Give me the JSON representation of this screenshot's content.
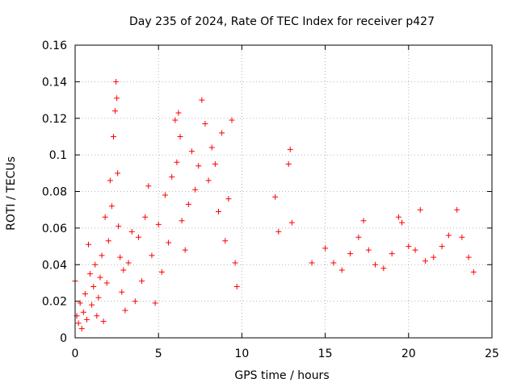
{
  "chart_data": {
    "type": "scatter",
    "title": "Day 235 of 2024, Rate Of TEC Index for receiver p427",
    "xlabel": "GPS time / hours",
    "ylabel": "ROTI / TECUs",
    "xlim": [
      0,
      25
    ],
    "ylim": [
      0,
      0.16
    ],
    "x_ticks": [
      0,
      5,
      10,
      15,
      20,
      25
    ],
    "y_ticks": [
      0,
      0.02,
      0.04,
      0.06,
      0.08,
      0.1,
      0.12,
      0.14,
      0.16
    ],
    "x_tick_labels": [
      "0",
      "5",
      "10",
      "15",
      "20",
      "25"
    ],
    "y_tick_labels": [
      "0",
      "0.02",
      "0.04",
      "0.06",
      "0.08",
      "0.1",
      "0.12",
      "0.14",
      "0.16"
    ],
    "grid": true,
    "marker": "plus",
    "color": "#ff0000",
    "series": [
      {
        "points": [
          [
            0.0,
            0.031
          ],
          [
            0.1,
            0.012
          ],
          [
            0.2,
            0.008
          ],
          [
            0.3,
            0.019
          ],
          [
            0.4,
            0.005
          ],
          [
            0.5,
            0.014
          ],
          [
            0.6,
            0.024
          ],
          [
            0.7,
            0.01
          ],
          [
            0.8,
            0.051
          ],
          [
            0.9,
            0.035
          ],
          [
            1.0,
            0.018
          ],
          [
            1.1,
            0.028
          ],
          [
            1.2,
            0.04
          ],
          [
            1.3,
            0.012
          ],
          [
            1.4,
            0.022
          ],
          [
            1.5,
            0.033
          ],
          [
            1.6,
            0.045
          ],
          [
            1.7,
            0.009
          ],
          [
            1.8,
            0.066
          ],
          [
            1.9,
            0.03
          ],
          [
            2.0,
            0.053
          ],
          [
            2.1,
            0.086
          ],
          [
            2.2,
            0.072
          ],
          [
            2.3,
            0.11
          ],
          [
            2.4,
            0.124
          ],
          [
            2.45,
            0.14
          ],
          [
            2.5,
            0.131
          ],
          [
            2.55,
            0.09
          ],
          [
            2.6,
            0.061
          ],
          [
            2.7,
            0.044
          ],
          [
            2.8,
            0.025
          ],
          [
            2.9,
            0.037
          ],
          [
            3.0,
            0.015
          ],
          [
            3.2,
            0.041
          ],
          [
            3.4,
            0.058
          ],
          [
            3.6,
            0.02
          ],
          [
            3.8,
            0.055
          ],
          [
            4.0,
            0.031
          ],
          [
            4.2,
            0.066
          ],
          [
            4.4,
            0.083
          ],
          [
            4.6,
            0.045
          ],
          [
            4.8,
            0.019
          ],
          [
            5.0,
            0.062
          ],
          [
            5.2,
            0.036
          ],
          [
            5.4,
            0.078
          ],
          [
            5.6,
            0.052
          ],
          [
            5.8,
            0.088
          ],
          [
            6.0,
            0.119
          ],
          [
            6.1,
            0.096
          ],
          [
            6.2,
            0.123
          ],
          [
            6.3,
            0.11
          ],
          [
            6.4,
            0.064
          ],
          [
            6.6,
            0.048
          ],
          [
            6.8,
            0.073
          ],
          [
            7.0,
            0.102
          ],
          [
            7.2,
            0.081
          ],
          [
            7.4,
            0.094
          ],
          [
            7.6,
            0.13
          ],
          [
            7.8,
            0.117
          ],
          [
            8.0,
            0.086
          ],
          [
            8.2,
            0.104
          ],
          [
            8.4,
            0.095
          ],
          [
            8.6,
            0.069
          ],
          [
            8.8,
            0.112
          ],
          [
            9.0,
            0.053
          ],
          [
            9.2,
            0.076
          ],
          [
            9.4,
            0.119
          ],
          [
            9.6,
            0.041
          ],
          [
            9.7,
            0.028
          ],
          [
            12.0,
            0.077
          ],
          [
            12.2,
            0.058
          ],
          [
            12.8,
            0.095
          ],
          [
            12.9,
            0.103
          ],
          [
            13.0,
            0.063
          ],
          [
            14.2,
            0.041
          ],
          [
            15.0,
            0.049
          ],
          [
            15.5,
            0.041
          ],
          [
            16.0,
            0.037
          ],
          [
            16.5,
            0.046
          ],
          [
            17.0,
            0.055
          ],
          [
            17.3,
            0.064
          ],
          [
            17.6,
            0.048
          ],
          [
            18.0,
            0.04
          ],
          [
            18.5,
            0.038
          ],
          [
            19.0,
            0.046
          ],
          [
            19.4,
            0.066
          ],
          [
            19.6,
            0.063
          ],
          [
            20.0,
            0.05
          ],
          [
            20.4,
            0.048
          ],
          [
            20.7,
            0.07
          ],
          [
            21.0,
            0.042
          ],
          [
            21.5,
            0.044
          ],
          [
            22.0,
            0.05
          ],
          [
            22.4,
            0.056
          ],
          [
            22.9,
            0.07
          ],
          [
            23.2,
            0.055
          ],
          [
            23.6,
            0.044
          ],
          [
            23.9,
            0.036
          ]
        ]
      }
    ]
  }
}
